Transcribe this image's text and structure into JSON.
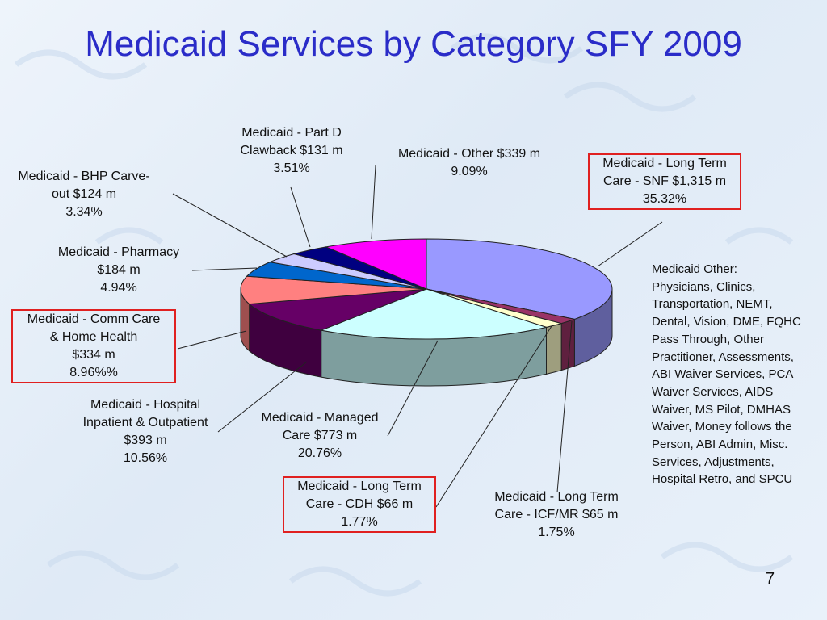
{
  "slide": {
    "title": "Medicaid Services by Category SFY 2009",
    "page_number": "7",
    "note": "Medicaid Other: Physicians, Clinics, Transportation, NEMT, Dental, Vision, DME, FQHC Pass Through, Other Practitioner, Assessments, ABI Waiver Services, PCA Waiver Services, AIDS Waiver, MS Pilot, DMHAS Waiver, Money follows the Person, ABI Admin, Misc. Services, Adjustments, Hospital Retro, and SPCU"
  },
  "chart_data": {
    "type": "pie",
    "title": "Medicaid Services by Category SFY 2009",
    "unit": "$ millions",
    "slices": [
      {
        "label": "Medicaid - Long Term Care - SNF",
        "value": 1315,
        "percent": 35.32,
        "color": "#9999ff",
        "highlighted": true,
        "lines": [
          "Medicaid - Long Term",
          "Care - SNF  $1,315 m",
          "35.32%"
        ]
      },
      {
        "label": "Medicaid - Long Term Care - ICF/MR",
        "value": 65,
        "percent": 1.75,
        "color": "#993366",
        "highlighted": false,
        "lines": [
          "Medicaid - Long Term",
          "Care - ICF/MR  $65 m",
          "1.75%"
        ]
      },
      {
        "label": "Medicaid - Long Term Care - CDH",
        "value": 66,
        "percent": 1.77,
        "color": "#ffffcc",
        "highlighted": true,
        "lines": [
          "Medicaid - Long Term",
          "Care - CDH  $66 m",
          "1.77%"
        ]
      },
      {
        "label": "Medicaid - Managed Care",
        "value": 773,
        "percent": 20.76,
        "color": "#ccffff",
        "highlighted": false,
        "lines": [
          "Medicaid - Managed",
          "Care    $773 m",
          "20.76%"
        ]
      },
      {
        "label": "Medicaid - Hospital Inpatient & Outpatient",
        "value": 393,
        "percent": 10.56,
        "color": "#660066",
        "highlighted": false,
        "lines": [
          "Medicaid - Hospital",
          "Inpatient & Outpatient",
          "$393 m",
          "10.56%"
        ]
      },
      {
        "label": "Medicaid - Comm Care & Home Health",
        "value": 334,
        "percent": 8.96,
        "color": "#ff8080",
        "highlighted": true,
        "lines": [
          "Medicaid - Comm Care",
          "& Home Health",
          "$334 m",
          "8.96%%"
        ]
      },
      {
        "label": "Medicaid - Pharmacy",
        "value": 184,
        "percent": 4.94,
        "color": "#0066cc",
        "highlighted": false,
        "lines": [
          "Medicaid - Pharmacy",
          "$184 m",
          "4.94%"
        ]
      },
      {
        "label": "Medicaid - BHP Carve-out",
        "value": 124,
        "percent": 3.34,
        "color": "#ccccff",
        "highlighted": false,
        "lines": [
          "Medicaid - BHP Carve-",
          "out $124 m",
          "3.34%"
        ]
      },
      {
        "label": "Medicaid - Part D Clawback",
        "value": 131,
        "percent": 3.51,
        "color": "#000080",
        "highlighted": false,
        "lines": [
          "Medicaid - Part D",
          "Clawback $131 m",
          "3.51%"
        ]
      },
      {
        "label": "Medicaid - Other",
        "value": 339,
        "percent": 9.09,
        "color": "#ff00ff",
        "highlighted": false,
        "lines": [
          "Medicaid - Other $339 m",
          "9.09%"
        ]
      }
    ]
  }
}
